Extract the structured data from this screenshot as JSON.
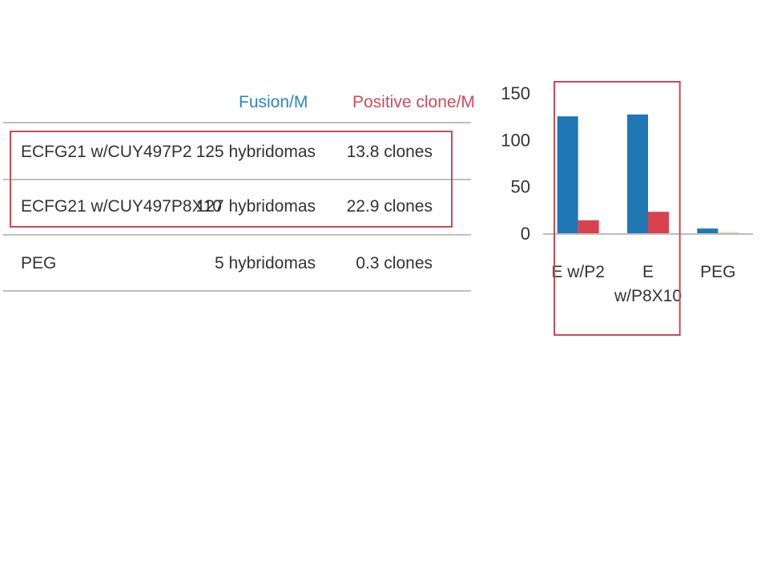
{
  "table": {
    "columns": [
      "",
      "Fusion/M",
      "Positive clone/M"
    ],
    "rows": [
      {
        "name": "ECFG21 w/CUY497P2",
        "fusion": "125 hybridomas",
        "positive": "13.8 clones"
      },
      {
        "name": "ECFG21 w/CUY497P8X10",
        "fusion": "127 hybridomas",
        "positive": "22.9 clones"
      },
      {
        "name": "PEG",
        "fusion": "5 hybridomas",
        "positive": "0.3 clones"
      }
    ]
  },
  "colors": {
    "fusion": "#1f77b4",
    "positive": "#d9414e",
    "highlight": "#c94a5a"
  },
  "chart_data": {
    "type": "bar",
    "categories": [
      [
        "E w/P2"
      ],
      [
        "E",
        "w/P8X10"
      ],
      [
        "PEG"
      ]
    ],
    "series": [
      {
        "values": [
          125,
          127,
          5
        ],
        "color": "#1f77b4"
      },
      {
        "values": [
          13.8,
          22.9,
          0.3
        ],
        "color": "#d9414e"
      }
    ],
    "ylim": [
      0,
      150
    ],
    "yticks": [
      0,
      50,
      100,
      150
    ],
    "highlighted_categories": [
      0,
      1
    ],
    "grid": false,
    "legend": "none"
  }
}
